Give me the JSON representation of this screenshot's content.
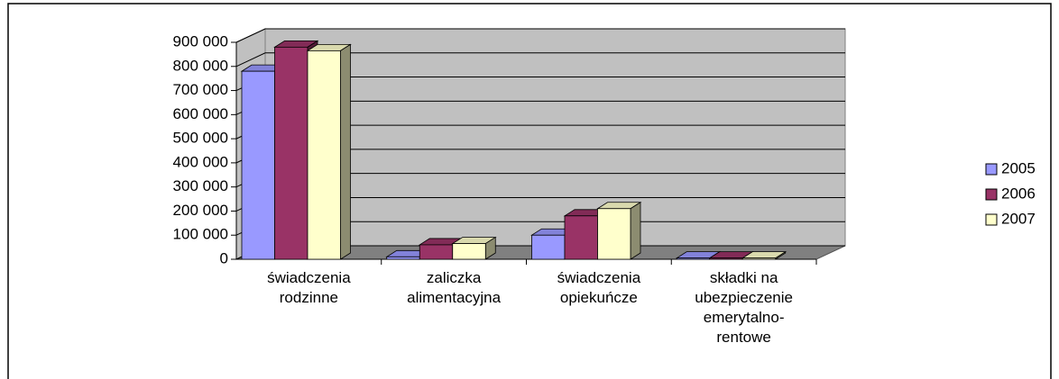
{
  "chart_data": {
    "type": "bar3d",
    "categories": [
      "świadczenia rodzinne",
      "zaliczka alimentacyjna",
      "świadczenia opiekuńcze",
      "składki na ubezpieczenie emerytalno-rentowe"
    ],
    "series": [
      {
        "name": "2005",
        "color": "#9999ff",
        "values": [
          780000,
          10000,
          100000,
          5000
        ]
      },
      {
        "name": "2006",
        "color": "#993366",
        "values": [
          880000,
          60000,
          180000,
          5000
        ]
      },
      {
        "name": "2007",
        "color": "#ffffcc",
        "values": [
          865000,
          65000,
          210000,
          5000
        ]
      }
    ],
    "ylim": [
      0,
      900000
    ],
    "yticks": [
      0,
      {
        "value": 100000,
        "label": "100 000"
      },
      {
        "value": 200000,
        "label": "200 000"
      },
      {
        "value": 300000,
        "label": "300 000"
      },
      {
        "value": 400000,
        "label": "400 000"
      },
      {
        "value": 500000,
        "label": "500 000"
      },
      {
        "value": 600000,
        "label": "600 000"
      },
      {
        "value": 700000,
        "label": "700 000"
      },
      {
        "value": 800000,
        "label": "800 000"
      },
      {
        "value": 900000,
        "label": "900 000"
      }
    ],
    "grid": true,
    "legend": "right"
  }
}
